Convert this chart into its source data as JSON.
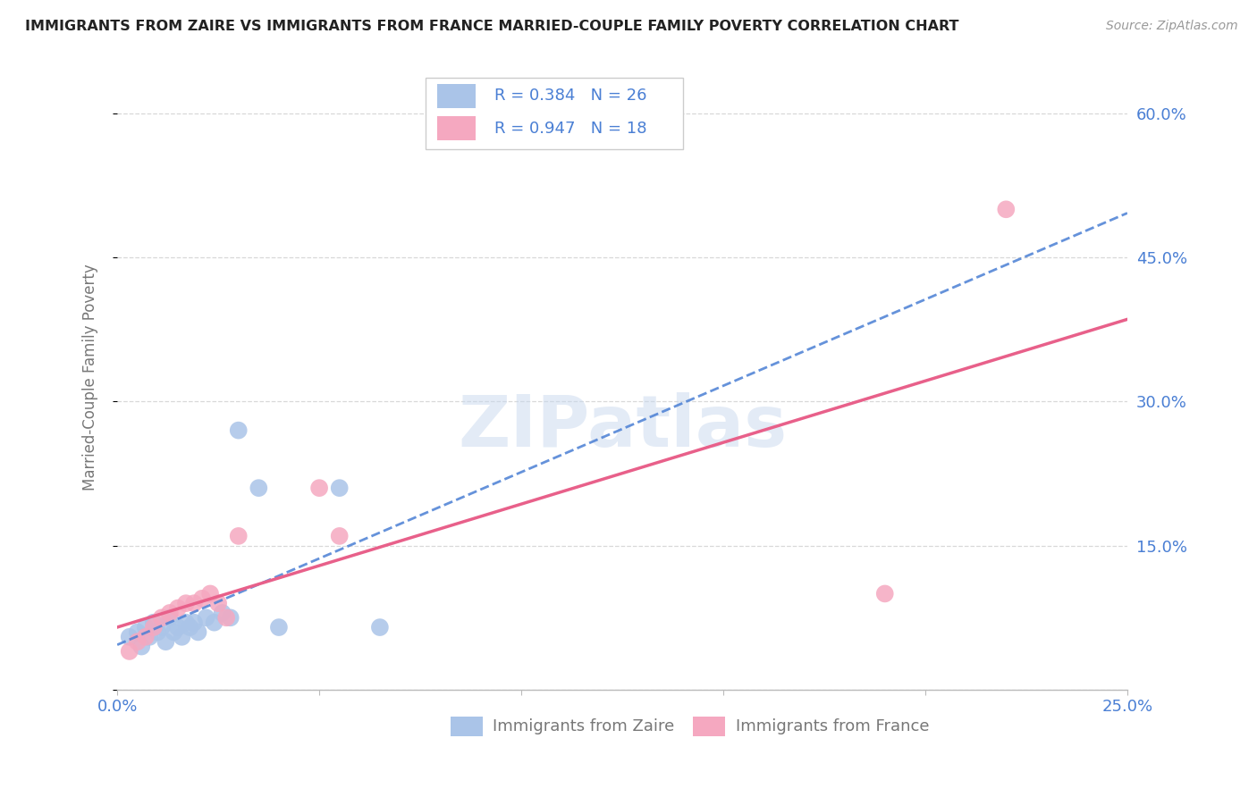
{
  "title": "IMMIGRANTS FROM ZAIRE VS IMMIGRANTS FROM FRANCE MARRIED-COUPLE FAMILY POVERTY CORRELATION CHART",
  "source": "Source: ZipAtlas.com",
  "ylabel_label": "Married-Couple Family Poverty",
  "xlim": [
    0.0,
    0.25
  ],
  "ylim": [
    0.0,
    0.65
  ],
  "xticks": [
    0.0,
    0.05,
    0.1,
    0.15,
    0.2,
    0.25
  ],
  "yticks": [
    0.0,
    0.15,
    0.3,
    0.45,
    0.6
  ],
  "zaire_color": "#aac4e8",
  "france_color": "#f5a8c0",
  "zaire_line_color": "#4a7fd4",
  "france_line_color": "#e8608a",
  "R_zaire": 0.384,
  "N_zaire": 26,
  "R_france": 0.947,
  "N_france": 18,
  "legend_label_zaire": "Immigrants from Zaire",
  "legend_label_france": "Immigrants from France",
  "watermark": "ZIPatlas",
  "background_color": "#ffffff",
  "grid_color": "#d8d8d8",
  "title_color": "#222222",
  "source_color": "#999999",
  "tick_color": "#4a7fd4",
  "label_color": "#777777",
  "zaire_scatter_x": [
    0.003,
    0.005,
    0.006,
    0.007,
    0.008,
    0.009,
    0.01,
    0.011,
    0.012,
    0.013,
    0.014,
    0.015,
    0.016,
    0.017,
    0.018,
    0.019,
    0.02,
    0.022,
    0.024,
    0.026,
    0.028,
    0.03,
    0.035,
    0.04,
    0.055,
    0.065
  ],
  "zaire_scatter_y": [
    0.055,
    0.06,
    0.045,
    0.065,
    0.055,
    0.07,
    0.06,
    0.065,
    0.05,
    0.075,
    0.06,
    0.065,
    0.055,
    0.07,
    0.065,
    0.07,
    0.06,
    0.075,
    0.07,
    0.08,
    0.075,
    0.27,
    0.21,
    0.065,
    0.21,
    0.065
  ],
  "france_scatter_x": [
    0.003,
    0.005,
    0.007,
    0.009,
    0.011,
    0.013,
    0.015,
    0.017,
    0.019,
    0.021,
    0.023,
    0.025,
    0.027,
    0.03,
    0.05,
    0.055,
    0.19,
    0.22
  ],
  "france_scatter_y": [
    0.04,
    0.05,
    0.055,
    0.065,
    0.075,
    0.08,
    0.085,
    0.09,
    0.09,
    0.095,
    0.1,
    0.09,
    0.075,
    0.16,
    0.21,
    0.16,
    0.1,
    0.5
  ],
  "zaire_line_x": [
    0.0,
    0.25
  ],
  "france_line_x": [
    0.0,
    0.25
  ]
}
